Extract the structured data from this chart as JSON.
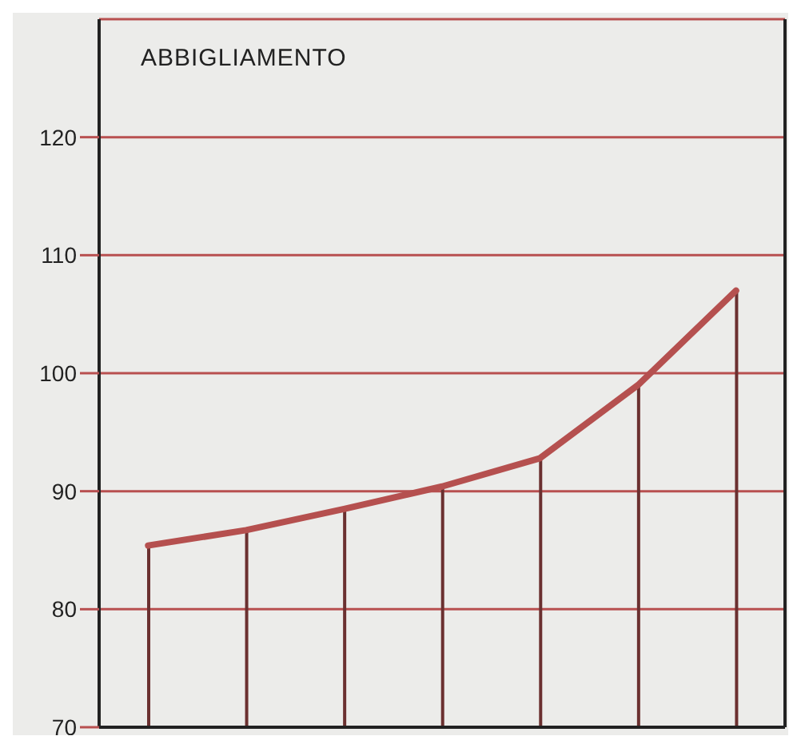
{
  "chart_data": {
    "type": "line",
    "title": "ABBIGLIAMENTO",
    "categories": [
      null,
      null,
      null,
      null,
      null,
      null,
      null
    ],
    "series": [
      {
        "type": "bar",
        "color": "#6b3030",
        "values": [
          85.4,
          86.7,
          88.5,
          90.4,
          92.8,
          99,
          107
        ]
      },
      {
        "color": "#b5504f",
        "values": [
          85.4,
          86.7,
          88.5,
          90.4,
          92.8,
          99,
          107
        ]
      }
    ],
    "ylim": [
      70,
      130
    ],
    "yticks": [
      70,
      80,
      90,
      100,
      110,
      120
    ],
    "grid": "y",
    "tick_labels": "y",
    "legend": false,
    "marker": "none",
    "line_style": "solid"
  }
}
